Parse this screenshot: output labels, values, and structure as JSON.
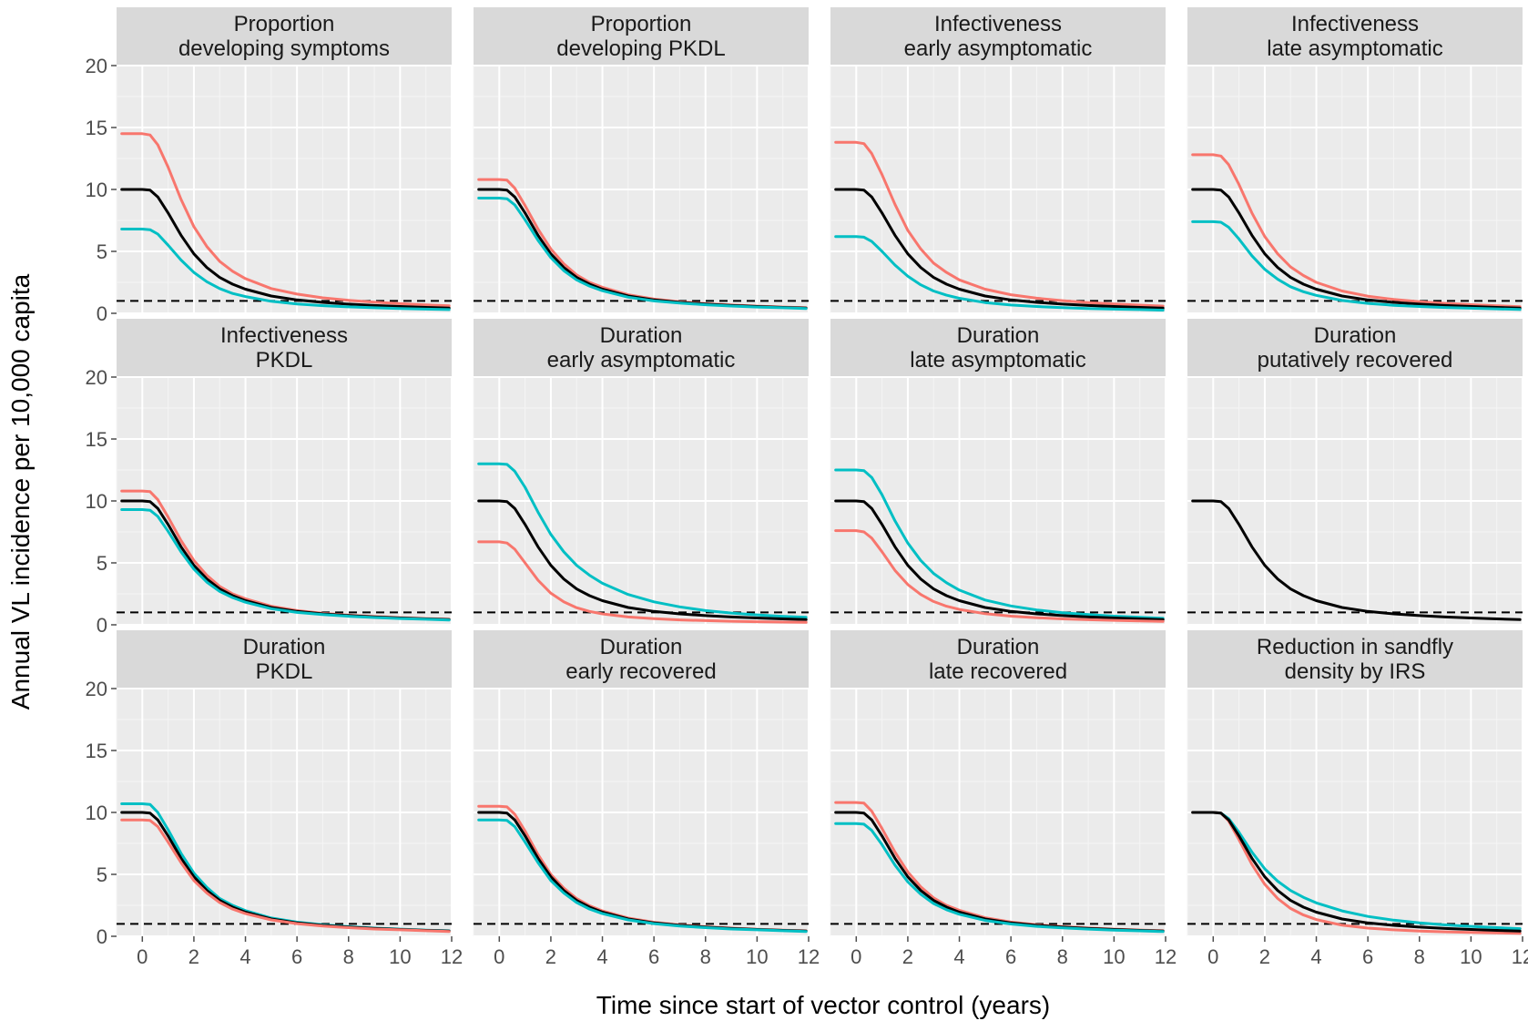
{
  "chart_data": {
    "type": "line",
    "xlabel": "Time since start of vector control (years)",
    "ylabel": "Annual VL incidence per 10,000 capita",
    "xlim": [
      -1,
      12
    ],
    "ylim": [
      0,
      20
    ],
    "x_ticks": [
      0,
      2,
      4,
      6,
      8,
      10,
      12
    ],
    "y_ticks": [
      0,
      5,
      10,
      15,
      20
    ],
    "grid": true,
    "legend": "none",
    "colors": {
      "high": "#F8766D",
      "low": "#00BFC4",
      "baseline": "#000000",
      "threshold": "#000000",
      "strip_bg": "#D9D9D9",
      "panel_bg": "#EBEBEB",
      "grid": "#FFFFFF"
    },
    "threshold": 1,
    "x": [
      -0.8,
      0,
      0.3,
      0.6,
      1,
      1.5,
      2,
      2.5,
      3,
      3.5,
      4,
      5,
      6,
      7,
      8,
      9,
      10,
      11,
      11.9
    ],
    "panels": [
      {
        "title": [
          "Proportion",
          "developing symptoms"
        ],
        "series": [
          {
            "color": "red",
            "values": [
              14.5,
              14.5,
              14.4,
              13.6,
              11.8,
              9.2,
              7.0,
              5.4,
              4.2,
              3.4,
              2.8,
              2.0,
              1.55,
              1.25,
              1.05,
              0.9,
              0.78,
              0.68,
              0.6
            ]
          },
          {
            "color": "black",
            "values": [
              10,
              10,
              9.95,
              9.4,
              8.1,
              6.3,
              4.8,
              3.7,
              2.9,
              2.35,
              1.95,
              1.4,
              1.08,
              0.88,
              0.74,
              0.63,
              0.55,
              0.48,
              0.42
            ]
          },
          {
            "color": "teal",
            "values": [
              6.8,
              6.8,
              6.75,
              6.4,
              5.5,
              4.3,
              3.3,
              2.55,
              2.0,
              1.6,
              1.35,
              0.97,
              0.76,
              0.62,
              0.52,
              0.45,
              0.39,
              0.34,
              0.3
            ]
          }
        ]
      },
      {
        "title": [
          "Proportion",
          "developing PKDL"
        ],
        "series": [
          {
            "color": "red",
            "values": [
              10.8,
              10.8,
              10.75,
              10.1,
              8.7,
              6.8,
              5.2,
              4.0,
              3.1,
              2.5,
              2.1,
              1.5,
              1.15,
              0.93,
              0.78,
              0.67,
              0.58,
              0.51,
              0.45
            ]
          },
          {
            "color": "black",
            "values": [
              10,
              10,
              9.95,
              9.4,
              8.1,
              6.3,
              4.8,
              3.7,
              2.9,
              2.35,
              1.95,
              1.4,
              1.08,
              0.88,
              0.74,
              0.63,
              0.55,
              0.48,
              0.42
            ]
          },
          {
            "color": "teal",
            "values": [
              9.3,
              9.3,
              9.25,
              8.75,
              7.55,
              5.9,
              4.5,
              3.45,
              2.7,
              2.2,
              1.82,
              1.3,
              1.0,
              0.82,
              0.69,
              0.59,
              0.51,
              0.45,
              0.39
            ]
          }
        ]
      },
      {
        "title": [
          "Infectiveness",
          "early asymptomatic"
        ],
        "series": [
          {
            "color": "red",
            "values": [
              13.8,
              13.8,
              13.7,
              12.9,
              11.2,
              8.8,
              6.7,
              5.2,
              4.05,
              3.3,
              2.7,
              1.95,
              1.5,
              1.22,
              1.02,
              0.87,
              0.76,
              0.66,
              0.58
            ]
          },
          {
            "color": "black",
            "values": [
              10,
              10,
              9.95,
              9.4,
              8.1,
              6.3,
              4.8,
              3.7,
              2.9,
              2.35,
              1.95,
              1.4,
              1.08,
              0.88,
              0.74,
              0.63,
              0.55,
              0.48,
              0.42
            ]
          },
          {
            "color": "teal",
            "values": [
              6.2,
              6.2,
              6.15,
              5.8,
              5.0,
              3.9,
              3.0,
              2.3,
              1.8,
              1.46,
              1.21,
              0.87,
              0.67,
              0.55,
              0.46,
              0.39,
              0.34,
              0.3,
              0.26
            ]
          }
        ]
      },
      {
        "title": [
          "Infectiveness",
          "late asymptomatic"
        ],
        "series": [
          {
            "color": "red",
            "values": [
              12.8,
              12.8,
              12.7,
              12.0,
              10.4,
              8.1,
              6.2,
              4.8,
              3.75,
              3.05,
              2.5,
              1.8,
              1.38,
              1.12,
              0.94,
              0.8,
              0.7,
              0.61,
              0.54
            ]
          },
          {
            "color": "black",
            "values": [
              10,
              10,
              9.95,
              9.4,
              8.1,
              6.3,
              4.8,
              3.7,
              2.9,
              2.35,
              1.95,
              1.4,
              1.08,
              0.88,
              0.74,
              0.63,
              0.55,
              0.48,
              0.42
            ]
          },
          {
            "color": "teal",
            "values": [
              7.4,
              7.4,
              7.35,
              6.95,
              6.0,
              4.65,
              3.55,
              2.75,
              2.15,
              1.74,
              1.45,
              1.04,
              0.8,
              0.65,
              0.55,
              0.47,
              0.41,
              0.36,
              0.31
            ]
          }
        ]
      },
      {
        "title": [
          "Infectiveness",
          "PKDL"
        ],
        "series": [
          {
            "color": "red",
            "values": [
              10.8,
              10.8,
              10.75,
              10.1,
              8.7,
              6.8,
              5.2,
              4.0,
              3.1,
              2.5,
              2.1,
              1.5,
              1.15,
              0.93,
              0.78,
              0.67,
              0.58,
              0.51,
              0.45
            ]
          },
          {
            "color": "black",
            "values": [
              10,
              10,
              9.95,
              9.4,
              8.1,
              6.3,
              4.8,
              3.7,
              2.9,
              2.35,
              1.95,
              1.4,
              1.08,
              0.88,
              0.74,
              0.63,
              0.55,
              0.48,
              0.42
            ]
          },
          {
            "color": "teal",
            "values": [
              9.3,
              9.3,
              9.25,
              8.75,
              7.55,
              5.9,
              4.5,
              3.45,
              2.7,
              2.2,
              1.82,
              1.3,
              1.0,
              0.82,
              0.69,
              0.59,
              0.51,
              0.45,
              0.39
            ]
          }
        ]
      },
      {
        "title": [
          "Duration",
          "early asymptomatic"
        ],
        "series": [
          {
            "color": "teal",
            "values": [
              13.0,
              13.0,
              12.95,
              12.4,
              11.1,
              9.1,
              7.3,
              5.9,
              4.8,
              4.0,
              3.35,
              2.45,
              1.85,
              1.45,
              1.15,
              0.95,
              0.8,
              0.68,
              0.6
            ]
          },
          {
            "color": "black",
            "values": [
              10,
              10,
              9.95,
              9.4,
              8.1,
              6.3,
              4.8,
              3.7,
              2.9,
              2.35,
              1.95,
              1.4,
              1.08,
              0.88,
              0.74,
              0.63,
              0.55,
              0.48,
              0.42
            ]
          },
          {
            "color": "red",
            "values": [
              6.7,
              6.7,
              6.6,
              6.1,
              5.0,
              3.6,
              2.55,
              1.85,
              1.38,
              1.08,
              0.88,
              0.63,
              0.49,
              0.4,
              0.34,
              0.29,
              0.25,
              0.22,
              0.2
            ]
          }
        ]
      },
      {
        "title": [
          "Duration",
          "late asymptomatic"
        ],
        "series": [
          {
            "color": "teal",
            "values": [
              12.5,
              12.5,
              12.45,
              11.9,
              10.5,
              8.4,
              6.6,
              5.2,
              4.15,
              3.4,
              2.8,
              2.0,
              1.52,
              1.2,
              0.98,
              0.82,
              0.7,
              0.6,
              0.52
            ]
          },
          {
            "color": "black",
            "values": [
              10,
              10,
              9.95,
              9.4,
              8.1,
              6.3,
              4.8,
              3.7,
              2.9,
              2.35,
              1.95,
              1.4,
              1.08,
              0.88,
              0.74,
              0.63,
              0.55,
              0.48,
              0.42
            ]
          },
          {
            "color": "red",
            "values": [
              7.6,
              7.6,
              7.5,
              7.0,
              5.9,
              4.4,
              3.25,
              2.45,
              1.88,
              1.5,
              1.24,
              0.9,
              0.7,
              0.57,
              0.48,
              0.41,
              0.36,
              0.31,
              0.28
            ]
          }
        ]
      },
      {
        "title": [
          "Duration",
          "putatively recovered"
        ],
        "series": [
          {
            "color": "black",
            "values": [
              10,
              10,
              9.95,
              9.4,
              8.1,
              6.3,
              4.8,
              3.7,
              2.9,
              2.35,
              1.95,
              1.4,
              1.08,
              0.88,
              0.74,
              0.63,
              0.55,
              0.48,
              0.42
            ]
          }
        ]
      },
      {
        "title": [
          "Duration",
          "PKDL"
        ],
        "series": [
          {
            "color": "teal",
            "values": [
              10.7,
              10.7,
              10.65,
              10.0,
              8.6,
              6.7,
              5.1,
              3.95,
              3.05,
              2.5,
              2.07,
              1.48,
              1.14,
              0.93,
              0.78,
              0.66,
              0.58,
              0.5,
              0.44
            ]
          },
          {
            "color": "black",
            "values": [
              10,
              10,
              9.95,
              9.4,
              8.1,
              6.3,
              4.8,
              3.7,
              2.9,
              2.35,
              1.95,
              1.4,
              1.08,
              0.88,
              0.74,
              0.63,
              0.55,
              0.48,
              0.42
            ]
          },
          {
            "color": "red",
            "values": [
              9.4,
              9.4,
              9.35,
              8.85,
              7.6,
              5.95,
              4.5,
              3.5,
              2.73,
              2.2,
              1.83,
              1.32,
              1.02,
              0.83,
              0.7,
              0.59,
              0.52,
              0.45,
              0.39
            ]
          }
        ]
      },
      {
        "title": [
          "Duration",
          "early recovered"
        ],
        "series": [
          {
            "color": "red",
            "values": [
              10.5,
              10.5,
              10.45,
              9.85,
              8.5,
              6.6,
              5.0,
              3.9,
              3.05,
              2.47,
              2.05,
              1.47,
              1.13,
              0.92,
              0.77,
              0.66,
              0.57,
              0.5,
              0.44
            ]
          },
          {
            "color": "black",
            "values": [
              10,
              10,
              9.95,
              9.4,
              8.1,
              6.3,
              4.8,
              3.7,
              2.9,
              2.35,
              1.95,
              1.4,
              1.08,
              0.88,
              0.74,
              0.63,
              0.55,
              0.48,
              0.42
            ]
          },
          {
            "color": "teal",
            "values": [
              9.4,
              9.4,
              9.35,
              8.85,
              7.6,
              5.95,
              4.5,
              3.5,
              2.73,
              2.2,
              1.83,
              1.32,
              1.02,
              0.83,
              0.7,
              0.59,
              0.52,
              0.45,
              0.39
            ]
          }
        ]
      },
      {
        "title": [
          "Duration",
          "late recovered"
        ],
        "series": [
          {
            "color": "red",
            "values": [
              10.8,
              10.8,
              10.75,
              10.1,
              8.7,
              6.8,
              5.2,
              4.0,
              3.1,
              2.5,
              2.1,
              1.5,
              1.15,
              0.93,
              0.78,
              0.67,
              0.58,
              0.51,
              0.45
            ]
          },
          {
            "color": "black",
            "values": [
              10,
              10,
              9.95,
              9.4,
              8.1,
              6.3,
              4.8,
              3.7,
              2.9,
              2.35,
              1.95,
              1.4,
              1.08,
              0.88,
              0.74,
              0.63,
              0.55,
              0.48,
              0.42
            ]
          },
          {
            "color": "teal",
            "values": [
              9.1,
              9.1,
              9.05,
              8.55,
              7.4,
              5.75,
              4.4,
              3.4,
              2.65,
              2.15,
              1.78,
              1.28,
              0.99,
              0.8,
              0.68,
              0.58,
              0.5,
              0.44,
              0.38
            ]
          }
        ]
      },
      {
        "title": [
          "Reduction in sandfly",
          "density by IRS"
        ],
        "series": [
          {
            "color": "teal",
            "values": [
              10,
              10,
              9.95,
              9.5,
              8.4,
              6.8,
              5.45,
              4.45,
              3.7,
              3.15,
              2.7,
              2.05,
              1.6,
              1.3,
              1.08,
              0.92,
              0.8,
              0.7,
              0.62
            ]
          },
          {
            "color": "red",
            "values": [
              10,
              10,
              9.95,
              9.3,
              7.8,
              5.8,
              4.2,
              3.05,
              2.25,
              1.72,
              1.35,
              0.9,
              0.66,
              0.52,
              0.43,
              0.36,
              0.31,
              0.27,
              0.24
            ]
          },
          {
            "color": "black",
            "values": [
              10,
              10,
              9.95,
              9.4,
              8.1,
              6.3,
              4.8,
              3.7,
              2.9,
              2.35,
              1.95,
              1.4,
              1.08,
              0.88,
              0.74,
              0.63,
              0.55,
              0.48,
              0.42
            ]
          }
        ]
      }
    ]
  }
}
